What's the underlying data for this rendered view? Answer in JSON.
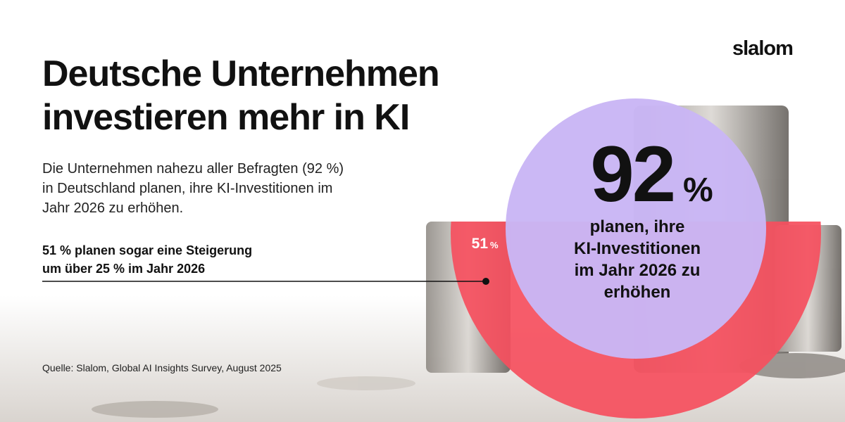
{
  "brand": "slalom",
  "title": [
    "Deutsche Unternehmen",
    "investieren mehr in KI"
  ],
  "description": [
    "Die Unternehmen nahezu aller Befragten (92 %)",
    "in Deutschland planen, ihre KI-Investitionen im",
    "Jahr 2026 zu erhöhen."
  ],
  "main_stat": {
    "value": 92,
    "unit": "%",
    "caption": [
      "planen, ihre",
      "KI-Investitionen",
      "im Jahr 2026 zu",
      "erhöhen"
    ]
  },
  "secondary_stat": {
    "value": 51,
    "unit": "%",
    "caption": [
      "51 % planen sogar eine Steigerung",
      "um über 25 % im Jahr 2026"
    ]
  },
  "source": "Quelle: Slalom, Global AI Insights Survey, August 2025"
}
